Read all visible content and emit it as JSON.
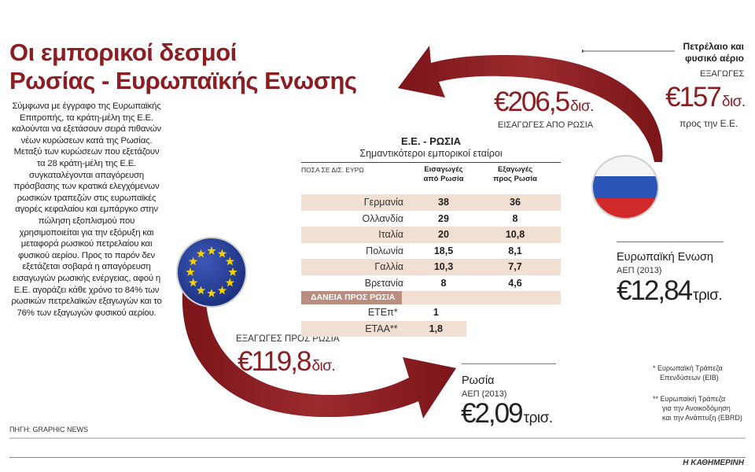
{
  "header": {
    "title_line1": "Οι εμπορικοί δεσμοί",
    "title_line2": "Ρωσίας - Ευρωπαϊκής Ενωσης"
  },
  "body_text": "Σύμφωνα με έγγραφο της Ευρωπαϊκής Επιτροπής, τα κράτη-μέλη της Ε.Ε. καλούνται να εξετάσουν σειρά πιθανών νέων κυρώσεων κατά της Ρωσίας. Μεταξύ των κυρώσεων που εξετάζουν τα 28 κράτη-μέλη της Ε.Ε. συγκαταλέγονται απαγόρευση πρόσβασης των κρατικά ελεγχόμενων ρωσικών τραπεζών στις ευρωπαϊκές αγορές κεφαλαίου και εμπάργκο στην πώληση εξοπλισμού που χρησιμοποιείται για την εξόρυξη και μεταφορά ρωσικού πετρελαίου και φυσικού αερίου. Προς το παρόν δεν εξετάζεται σοβαρά η απαγόρευση εισαγωγών ρωσικής ενέργειας, αφού η Ε.Ε. αγοράζει κάθε χρόνο το 84% των ρωσικών πετρελαϊκών εξαγωγών και το 76% των εξαγωγών φυσικού αερίου.",
  "source": "ΠΗΓΗ: GRAPHIC NEWS",
  "brand": "Η ΚΑΘΗΜΕΡΙΝΗ",
  "flows": {
    "imports_from_russia": {
      "value": "€206,5",
      "unit": "δισ.",
      "label": "ΕΙΣΑΓΩΓΕΣ ΑΠΟ ΡΩΣΙΑ"
    },
    "oil_gas": {
      "title_line1": "Πετρέλαιο και",
      "title_line2": "φυσικό αέριο",
      "label": "ΕΞΑΓΩΓΕΣ",
      "value": "€157",
      "unit": "δισ.",
      "sublabel": "προς την Ε.Ε."
    },
    "exports_to_russia": {
      "label": "ΕΞΑΓΩΓΕΣ ΠΡΟΣ ΡΩΣΙΑ",
      "value": "€119,8",
      "unit": "δισ."
    }
  },
  "eu": {
    "name": "Ευρωπαϊκή Ενωση",
    "gdp_label": "ΑΕΠ (2013)",
    "value": "€12,84",
    "unit": "τρισ."
  },
  "russia": {
    "name": "Ρωσία",
    "gdp_label": "ΑΕΠ (2013)",
    "value": "€2,09",
    "unit": "τρισ."
  },
  "legend": {
    "eib_line1": "* Ευρωπαϊκή Τράπεζα",
    "eib_line2": "Επενδύσεων (EIB)",
    "ebrd_line1": "** Ευρωπαϊκή Τράπεζα",
    "ebrd_line2": "για την Ανοικοδόμηση",
    "ebrd_line3": "και την Ανάπτυξη (EBRD)"
  },
  "chart_data": {
    "type": "table",
    "title": "Ε.Ε. - ΡΩΣΙΑ",
    "subtitle": "Σημαντικότεροι εμπορικοί εταίροι",
    "unit_label": "ΠΟΣΑ ΣΕ ΔΙΣ. ΕΥΡΩ",
    "columns": [
      "Εισαγωγές από Ρωσία",
      "Εξαγωγές προς Ρωσία"
    ],
    "col1_line1": "Εισαγωγές",
    "col1_line2": "από Ρωσία",
    "col2_line1": "Εξαγωγές",
    "col2_line2": "προς Ρωσία",
    "rows": [
      {
        "name": "Γερμανία",
        "imports": "38",
        "exports": "36"
      },
      {
        "name": "Ολλανδία",
        "imports": "29",
        "exports": "8"
      },
      {
        "name": "Ιταλία",
        "imports": "20",
        "exports": "10,8"
      },
      {
        "name": "Πολωνία",
        "imports": "18,5",
        "exports": "8,1"
      },
      {
        "name": "Γαλλία",
        "imports": "10,3",
        "exports": "7,7"
      },
      {
        "name": "Βρετανία",
        "imports": "8",
        "exports": "4,6"
      }
    ],
    "loans_label": "ΔΑΝΕΙΑ ΠΡΟΣ ΡΩΣΙΑ",
    "loans": [
      {
        "name": "ΕΤΕπ*",
        "value": "1"
      },
      {
        "name": "ΕΤΑΑ**",
        "value": "1,8"
      }
    ]
  },
  "colors": {
    "accent": "#8a1e22",
    "shade": "#f2dfd3",
    "loans_bar": "#b98d80"
  }
}
